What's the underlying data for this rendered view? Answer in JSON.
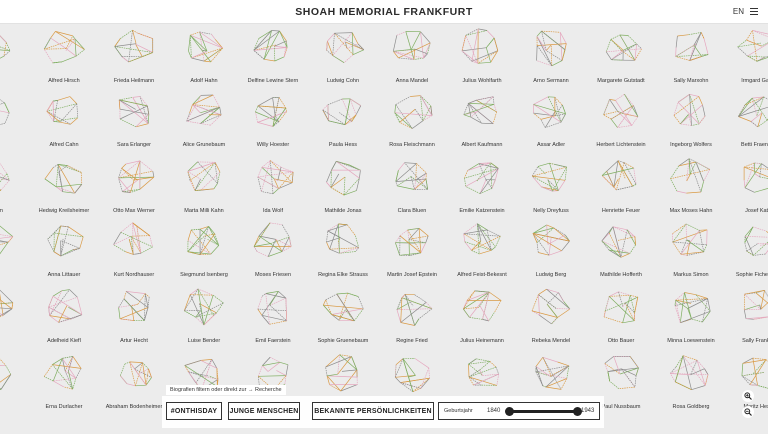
{
  "header": {
    "title": "SHOAH MEMORIAL FRANKFURT",
    "lang": "EN",
    "menu_icon": "hamburger-icon"
  },
  "colors": {
    "background": "#ececec",
    "poly_green": "#7fae61",
    "poly_orange": "#d99a45",
    "poly_pink": "#e5a8bf",
    "poly_gray": "#8c8c8c"
  },
  "rows": [
    [
      "",
      "Alfred Hirsch",
      "Frieda Heilmann",
      "Adolf Hahn",
      "Delfine Lewine Stern",
      "Ludwig Cohn",
      "Anna Mandel",
      "Julius Wohlfarth",
      "Arno Sermann",
      "Margarete Gutstadt",
      "Sally Marxohn",
      "Irmgard Gans"
    ],
    [
      "mann",
      "Alfred Cahn",
      "Sara Erlanger",
      "Alice Grunebaum",
      "Willy Hoester",
      "Paula Hess",
      "Rosa Fleischmann",
      "Albert Kaufmann",
      "Assar Adler",
      "Herbert Lichtenstein",
      "Ingeborg Wolfers",
      "Betti Fraenkel"
    ],
    [
      "nebaum",
      "Hedwig Kreilsheimer",
      "Otto Max Werner",
      "Marta Milli Kahn",
      "Ida Wolf",
      "Mathilde Jonas",
      "Clara Bluen",
      "Emilie Katzenstein",
      "Nelly Dreyfuss",
      "Henriette Feuer",
      "Max Moses Hahn",
      "Josef Katz"
    ],
    [
      "",
      "Anna Littauer",
      "Kurt Nordhauser",
      "Siegmund Isenberg",
      "Moses Friesen",
      "Regina Elke Strauss",
      "Martin Josef Epstein",
      "Alfred Feist-Bekesnt",
      "Ludwig Berg",
      "Mathilde Hofferth",
      "Markus Simon",
      "Sophie Fichendler"
    ],
    [
      "",
      "Adelheid Kiefl",
      "Artur Hecht",
      "Luise Bender",
      "Emil Faerstein",
      "Sophie Gruenebaum",
      "Regine Fried",
      "Julius Heinemann",
      "Rebeka Mendel",
      "Otto Bauer",
      "Minna Loewenstein",
      "Sally Frankel"
    ],
    [
      "",
      "Erna Durlacher",
      "Abraham Bodenheimer",
      "Sara Joseph",
      "Louis Adler",
      "Karl A. Herz",
      "Sigmund",
      "Eduard Schwarzschild",
      "Ella Steinmetz",
      "Paul Nussbaum",
      "Rosa Goldberg",
      "Moritz Hess"
    ]
  ],
  "filter": {
    "hint": "Biografien filtern oder direkt zur → Recherche",
    "buttons": [
      "#ONTHISDAY",
      "JUNGE MENSCHEN",
      "BEKANNTE PERSÖNLICHKEITEN"
    ],
    "slider": {
      "label": "Geburtsjahr",
      "min_year": "1840",
      "max_year": "1943",
      "from_fraction": 0,
      "to_fraction": 1
    }
  },
  "zoom": {
    "in_icon": "zoom-in-icon",
    "out_icon": "zoom-out-icon"
  }
}
